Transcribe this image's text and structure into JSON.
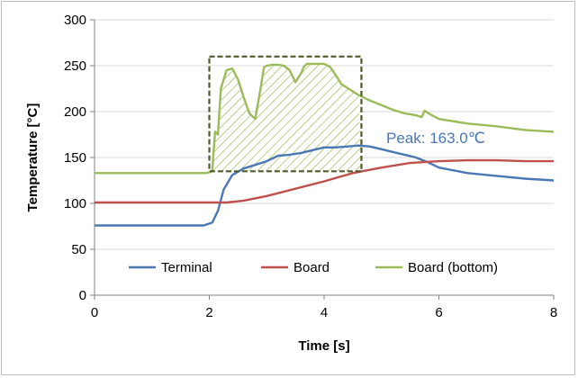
{
  "chart_data": {
    "type": "line",
    "xlabel": "Time [s]",
    "ylabel": "Temperature [°C]",
    "xlim": [
      0,
      8
    ],
    "ylim": [
      0,
      300
    ],
    "x_ticks": [
      "0",
      "2",
      "4",
      "6",
      "8"
    ],
    "y_ticks": [
      "0",
      "50",
      "100",
      "150",
      "200",
      "250",
      "300"
    ],
    "grid": "horizontal",
    "legend_position": "bottom-inside",
    "annotation": "Peak: 163.0℃",
    "highlight_box": {
      "x": [
        2.0,
        4.65
      ],
      "y": [
        135,
        260
      ]
    },
    "series": [
      {
        "name": "Terminal",
        "color": "#4a78b5",
        "x": [
          0,
          1.9,
          2.05,
          2.15,
          2.25,
          2.4,
          2.6,
          2.8,
          3.0,
          3.2,
          3.4,
          3.6,
          3.8,
          4.0,
          4.2,
          4.4,
          4.6,
          4.8,
          5.0,
          5.2,
          5.4,
          5.6,
          5.8,
          6.0,
          6.5,
          7.0,
          7.5,
          8.0
        ],
        "y": [
          76,
          76,
          79,
          92,
          115,
          131,
          138,
          142,
          146,
          152,
          153,
          155,
          158,
          161,
          161,
          162,
          163,
          162,
          159,
          156,
          153,
          150,
          145,
          139,
          133,
          130,
          127,
          125
        ]
      },
      {
        "name": "Board",
        "color": "#c0504d",
        "x": [
          0,
          2.0,
          2.3,
          2.6,
          3.0,
          3.5,
          4.0,
          4.5,
          5.0,
          5.5,
          6.0,
          6.5,
          7.0,
          7.5,
          8.0
        ],
        "y": [
          101,
          101,
          101,
          103,
          108,
          116,
          124,
          133,
          139,
          144,
          146,
          147,
          147,
          146,
          146
        ]
      },
      {
        "name": "Board (bottom)",
        "color": "#9bbb59",
        "x": [
          0,
          1.95,
          2.05,
          2.1,
          2.15,
          2.2,
          2.3,
          2.4,
          2.5,
          2.6,
          2.7,
          2.8,
          2.9,
          2.95,
          3.0,
          3.1,
          3.2,
          3.3,
          3.4,
          3.5,
          3.6,
          3.65,
          3.7,
          3.8,
          4.0,
          4.1,
          4.2,
          4.3,
          4.4,
          4.6,
          4.8,
          5.0,
          5.2,
          5.4,
          5.6,
          5.7,
          5.75,
          5.85,
          6.0,
          6.5,
          7.0,
          7.5,
          8.0
        ],
        "y": [
          133,
          133,
          135,
          178,
          175,
          225,
          245,
          247,
          235,
          215,
          198,
          192,
          228,
          248,
          250,
          251,
          251,
          250,
          245,
          232,
          242,
          249,
          252,
          252,
          252,
          249,
          240,
          230,
          226,
          218,
          212,
          207,
          202,
          198,
          196,
          194,
          201,
          197,
          192,
          187,
          184,
          180,
          178
        ]
      }
    ]
  }
}
